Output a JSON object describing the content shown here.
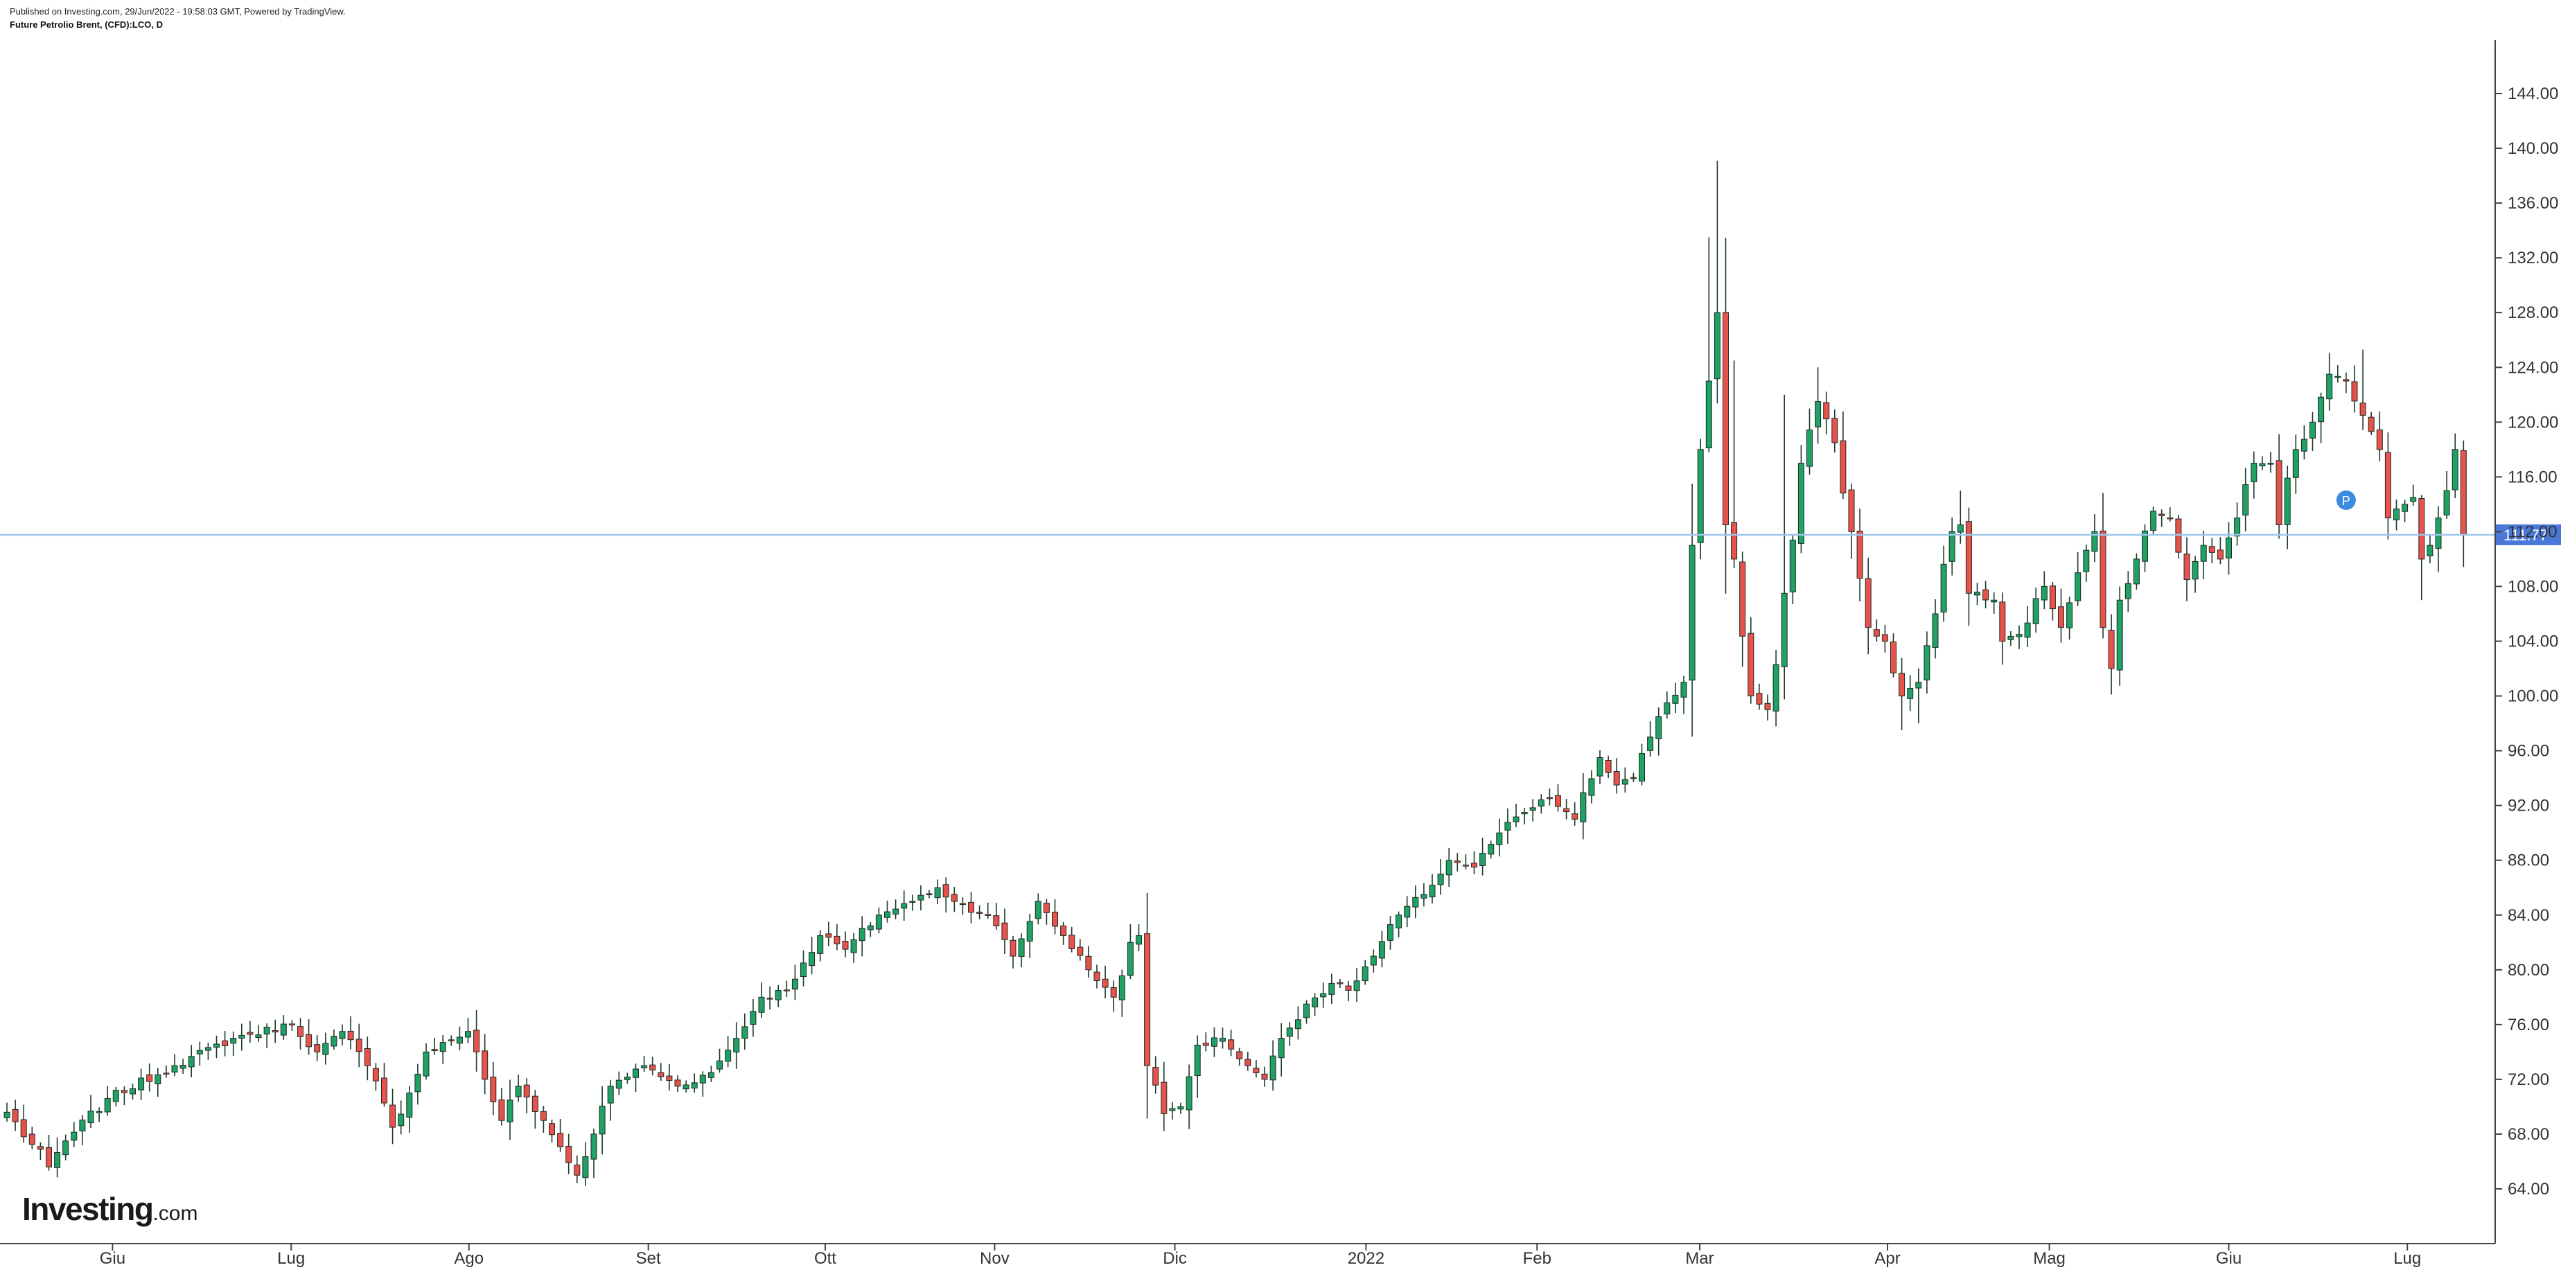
{
  "header": {
    "published": "Published on Investing.com, 29/Jun/2022 - 19:58:03 GMT, Powered by TradingView.",
    "symbol": "Future Petrolio Brent, (CFD):LCO, D"
  },
  "logo": {
    "brand": "Investing",
    "suffix": ".com"
  },
  "colors": {
    "up": "#1fa263",
    "down": "#e8524a",
    "wick": "#1b3a2a",
    "last_line": "#9fc7ee",
    "last_badge": "#4a78d8",
    "event": "#3d8be0",
    "axis": "#333333"
  },
  "event_marker": {
    "label": "P",
    "x_index": 279,
    "y": 114.3
  },
  "chart_data": {
    "type": "candlestick",
    "title": "Future Petrolio Brent, (CFD):LCO, D",
    "last_price": 111.77,
    "last_price_label": "111.77",
    "ylim": [
      61.0,
      149.0
    ],
    "y_ticks": [
      64,
      68,
      72,
      76,
      80,
      84,
      88,
      92,
      96,
      100,
      104,
      108,
      112,
      116,
      120,
      124,
      128,
      132,
      136,
      140,
      144
    ],
    "y_tick_labels": [
      "64.00",
      "68.00",
      "72.00",
      "76.00",
      "80.00",
      "84.00",
      "88.00",
      "92.00",
      "96.00",
      "100.00",
      "104.00",
      "108.00",
      "112.00",
      "116.00",
      "120.00",
      "124.00",
      "128.00",
      "132.00",
      "136.00",
      "140.00",
      "144.00"
    ],
    "x_ticks": [
      {
        "label": "Giu",
        "index": 12.6
      },
      {
        "label": "Lug",
        "index": 33.9
      },
      {
        "label": "Ago",
        "index": 55.1
      },
      {
        "label": "Set",
        "index": 76.5
      },
      {
        "label": "Ott",
        "index": 97.6
      },
      {
        "label": "Nov",
        "index": 117.8
      },
      {
        "label": "Dic",
        "index": 139.3
      },
      {
        "label": "2022",
        "index": 162.1
      },
      {
        "label": "Feb",
        "index": 182.5
      },
      {
        "label": "Mar",
        "index": 201.9
      },
      {
        "label": "Apr",
        "index": 224.3
      },
      {
        "label": "Mag",
        "index": 243.6
      },
      {
        "label": "Giu",
        "index": 265.0
      },
      {
        "label": "Lug",
        "index": 286.3
      }
    ],
    "close_anchors": [
      [
        0,
        69.6
      ],
      [
        5,
        65.6
      ],
      [
        7,
        67.5
      ],
      [
        12,
        70.6
      ],
      [
        20,
        73.0
      ],
      [
        27,
        75.0
      ],
      [
        34,
        76.0
      ],
      [
        37,
        74.0
      ],
      [
        40,
        75.5
      ],
      [
        43,
        73.0
      ],
      [
        46,
        68.5
      ],
      [
        48,
        71.0
      ],
      [
        50,
        74.0
      ],
      [
        55,
        75.5
      ],
      [
        57,
        72.0
      ],
      [
        59,
        69.0
      ],
      [
        61,
        71.5
      ],
      [
        64,
        69.0
      ],
      [
        68,
        65.0
      ],
      [
        70,
        68.0
      ],
      [
        72,
        71.5
      ],
      [
        76,
        73.0
      ],
      [
        80,
        71.5
      ],
      [
        84,
        72.5
      ],
      [
        87,
        75.0
      ],
      [
        90,
        78.0
      ],
      [
        93,
        78.5
      ],
      [
        95,
        80.5
      ],
      [
        97,
        82.5
      ],
      [
        100,
        81.5
      ],
      [
        104,
        84.0
      ],
      [
        108,
        85.0
      ],
      [
        111,
        86.0
      ],
      [
        113,
        85.0
      ],
      [
        117,
        84.0
      ],
      [
        120,
        81.0
      ],
      [
        123,
        85.0
      ],
      [
        126,
        82.5
      ],
      [
        129,
        80.0
      ],
      [
        132,
        78.0
      ],
      [
        134,
        82.0
      ],
      [
        135,
        82.5
      ],
      [
        136,
        73.0
      ],
      [
        138,
        69.5
      ],
      [
        140,
        70.0
      ],
      [
        142,
        74.5
      ],
      [
        145,
        75.0
      ],
      [
        148,
        73.0
      ],
      [
        150,
        72.0
      ],
      [
        152,
        75.0
      ],
      [
        155,
        77.5
      ],
      [
        158,
        79.0
      ],
      [
        160,
        78.5
      ],
      [
        163,
        81.0
      ],
      [
        166,
        84.0
      ],
      [
        169,
        85.5
      ],
      [
        172,
        88.0
      ],
      [
        175,
        87.5
      ],
      [
        178,
        90.0
      ],
      [
        181,
        91.5
      ],
      [
        184,
        92.5
      ],
      [
        187,
        91.0
      ],
      [
        190,
        95.5
      ],
      [
        192,
        93.5
      ],
      [
        194,
        94.0
      ],
      [
        196,
        97.0
      ],
      [
        198,
        99.5
      ],
      [
        200,
        101.0
      ],
      [
        201,
        111.0
      ],
      [
        202,
        118.0
      ],
      [
        203,
        123.0
      ],
      [
        204,
        128.0
      ],
      [
        205,
        112.5
      ],
      [
        206,
        110.0
      ],
      [
        208,
        100.0
      ],
      [
        210,
        99.0
      ],
      [
        212,
        107.5
      ],
      [
        214,
        117.0
      ],
      [
        216,
        121.5
      ],
      [
        218,
        118.5
      ],
      [
        220,
        112.0
      ],
      [
        222,
        105.0
      ],
      [
        224,
        104.0
      ],
      [
        226,
        100.0
      ],
      [
        228,
        101.0
      ],
      [
        230,
        106.0
      ],
      [
        232,
        112.0
      ],
      [
        233,
        112.5
      ],
      [
        234,
        107.5
      ],
      [
        237,
        107.0
      ],
      [
        238,
        104.0
      ],
      [
        240,
        104.5
      ],
      [
        243,
        108.0
      ],
      [
        245,
        105.0
      ],
      [
        247,
        109.0
      ],
      [
        249,
        112.0
      ],
      [
        250,
        105.0
      ],
      [
        251,
        102.0
      ],
      [
        252,
        107.0
      ],
      [
        254,
        110.0
      ],
      [
        256,
        113.5
      ],
      [
        258,
        113.0
      ],
      [
        260,
        108.5
      ],
      [
        262,
        111.0
      ],
      [
        264,
        110.0
      ],
      [
        266,
        113.0
      ],
      [
        268,
        117.0
      ],
      [
        270,
        117.0
      ],
      [
        271,
        112.5
      ],
      [
        273,
        118.0
      ],
      [
        275,
        120.0
      ],
      [
        277,
        123.5
      ],
      [
        279,
        123.0
      ],
      [
        281,
        120.5
      ],
      [
        283,
        118.0
      ],
      [
        284,
        113.0
      ],
      [
        286,
        114.0
      ],
      [
        287,
        114.5
      ],
      [
        288,
        110.0
      ],
      [
        289,
        111.0
      ],
      [
        290,
        113.0
      ],
      [
        291,
        115.0
      ],
      [
        292,
        118.0
      ],
      [
        293,
        111.77
      ]
    ],
    "spikes": [
      {
        "index": 201,
        "high": 115.5
      },
      {
        "index": 203,
        "high": 133.5
      },
      {
        "index": 204,
        "high": 139.1
      },
      {
        "index": 205,
        "high": 131.5
      },
      {
        "index": 206,
        "high": 124.5
      },
      {
        "index": 212,
        "high": 122.0
      },
      {
        "index": 216,
        "high": 124.0
      },
      {
        "index": 226,
        "low": 97.5
      },
      {
        "index": 228,
        "low": 98.0
      },
      {
        "index": 233,
        "high": 115.0
      },
      {
        "index": 277,
        "high": 125.0
      },
      {
        "index": 281,
        "high": 125.3
      },
      {
        "index": 288,
        "low": 107.0
      }
    ]
  }
}
